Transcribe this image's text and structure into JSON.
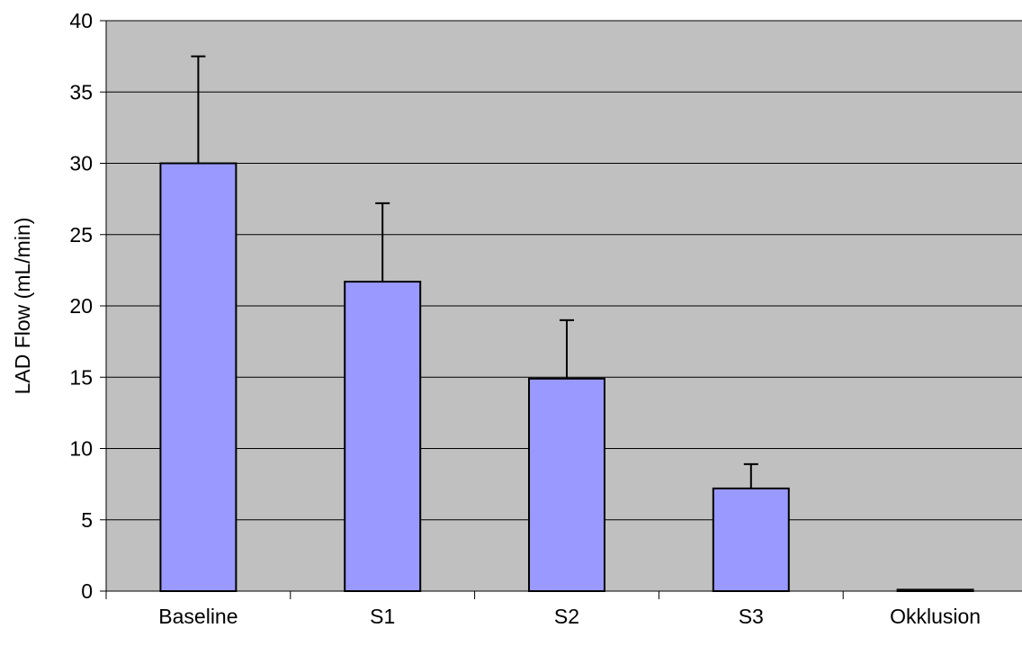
{
  "chart_data": {
    "type": "bar",
    "title": "",
    "xlabel": "",
    "ylabel": "LAD Flow (mL/min)",
    "categories": [
      "Baseline",
      "S1",
      "S2",
      "S3",
      "Okklusion"
    ],
    "values": [
      30.0,
      21.7,
      14.9,
      7.2,
      0.1
    ],
    "error_upper": [
      7.5,
      5.5,
      4.1,
      1.7,
      0.0
    ],
    "ylim": [
      0,
      40
    ],
    "yticks": [
      0,
      5,
      10,
      15,
      20,
      25,
      30,
      35,
      40
    ],
    "grid": true,
    "legend": "none",
    "colors": {
      "plot_background": "#c0c0c0",
      "bar_fill": "#9999ff",
      "bar_stroke": "#000000",
      "gridline": "#000000"
    }
  }
}
